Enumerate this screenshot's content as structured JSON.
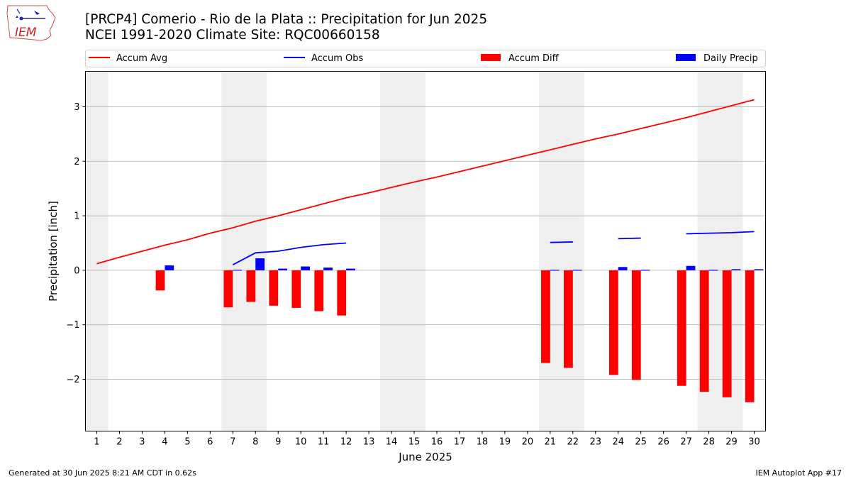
{
  "header": {
    "title_line1": "[PRCP4] Comerio - Rio de la Plata :: Precipitation for Jun 2025",
    "title_line2": "NCEI 1991-2020 Climate Site: RQC00660158",
    "logo_text": "IEM"
  },
  "footer": {
    "generated": "Generated at 30 Jun 2025 8:21 AM CDT in 0.62s",
    "app": "IEM Autoplot App #17"
  },
  "chart_data": {
    "type": "bar",
    "xlabel": "June 2025",
    "ylabel": "Precipitation [inch]",
    "xlim": [
      0.5,
      30.5
    ],
    "ylim": [
      -2.95,
      3.65
    ],
    "yticks": [
      -2,
      -1,
      0,
      1,
      2,
      3
    ],
    "yticklabels": [
      "−2",
      "−1",
      "0",
      "1",
      "2",
      "3"
    ],
    "grid": "horizontal",
    "legend_position": "top",
    "weekend_shading": [
      [
        0.5,
        1.5
      ],
      [
        6.5,
        8.5
      ],
      [
        13.5,
        15.5
      ],
      [
        20.5,
        22.5
      ],
      [
        27.5,
        29.5
      ]
    ],
    "days": [
      1,
      2,
      3,
      4,
      5,
      6,
      7,
      8,
      9,
      10,
      11,
      12,
      13,
      14,
      15,
      16,
      17,
      18,
      19,
      20,
      21,
      22,
      23,
      24,
      25,
      26,
      27,
      28,
      29,
      30
    ],
    "legend": [
      {
        "label": "Accum Avg",
        "color": "#ff0000",
        "kind": "line"
      },
      {
        "label": "Accum Obs",
        "color": "#0000ff",
        "kind": "line"
      },
      {
        "label": "Accum Diff",
        "color": "#ff0000",
        "kind": "bar"
      },
      {
        "label": "Daily Precip",
        "color": "#0000ff",
        "kind": "bar"
      }
    ],
    "series": [
      {
        "name": "Accum Avg",
        "color": "#ff0000",
        "x": [
          1,
          2,
          3,
          4,
          5,
          6,
          7,
          8,
          9,
          10,
          11,
          12,
          13,
          14,
          15,
          16,
          17,
          18,
          19,
          20,
          21,
          22,
          23,
          24,
          25,
          26,
          27,
          28,
          29,
          30
        ],
        "values": [
          0.12,
          0.24,
          0.35,
          0.46,
          0.56,
          0.68,
          0.78,
          0.9,
          1.0,
          1.11,
          1.22,
          1.33,
          1.42,
          1.52,
          1.62,
          1.71,
          1.81,
          1.91,
          2.01,
          2.11,
          2.21,
          2.31,
          2.41,
          2.5,
          2.6,
          2.7,
          2.8,
          2.91,
          3.02,
          3.13
        ]
      },
      {
        "name": "Accum Obs",
        "color": "#0000ff",
        "segments": [
          {
            "x": [
              7,
              8,
              9,
              10,
              11,
              12
            ],
            "values": [
              0.1,
              0.32,
              0.35,
              0.42,
              0.47,
              0.5
            ]
          },
          {
            "x": [
              21,
              22
            ],
            "values": [
              0.51,
              0.52
            ]
          },
          {
            "x": [
              24,
              25
            ],
            "values": [
              0.58,
              0.59
            ]
          },
          {
            "x": [
              27,
              28,
              29,
              30
            ],
            "values": [
              0.67,
              0.68,
              0.69,
              0.71
            ]
          }
        ]
      },
      {
        "name": "Accum Diff",
        "color": "#ff0000",
        "x": [
          4,
          7,
          8,
          9,
          10,
          11,
          12,
          21,
          22,
          24,
          25,
          27,
          28,
          29,
          30
        ],
        "values": [
          -0.37,
          -0.68,
          -0.58,
          -0.65,
          -0.69,
          -0.75,
          -0.83,
          -1.7,
          -1.79,
          -1.92,
          -2.01,
          -2.12,
          -2.23,
          -2.33,
          -2.42
        ]
      },
      {
        "name": "Daily Precip",
        "color": "#0000ff",
        "x": [
          4,
          7,
          8,
          9,
          10,
          11,
          12,
          21,
          22,
          24,
          25,
          27,
          28,
          29,
          30
        ],
        "values": [
          0.09,
          0.01,
          0.22,
          0.03,
          0.07,
          0.05,
          0.03,
          0.01,
          0.01,
          0.06,
          0.01,
          0.08,
          0.01,
          0.02,
          0.02
        ]
      }
    ]
  }
}
